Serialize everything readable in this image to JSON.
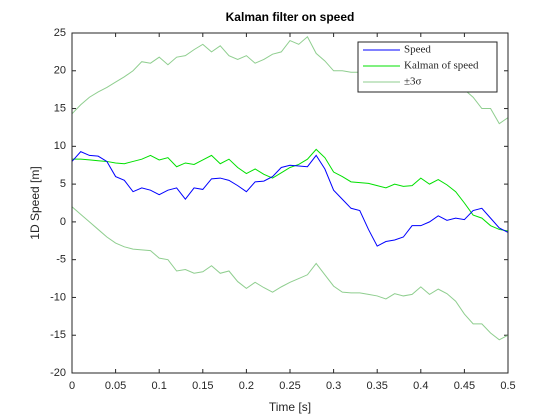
{
  "chart_data": {
    "type": "line",
    "title": "Kalman filter on speed",
    "xlabel": "Time [s]",
    "ylabel": "1D Speed [m]",
    "x": [
      0,
      0.01,
      0.02,
      0.03,
      0.04,
      0.05,
      0.06,
      0.07,
      0.08,
      0.09,
      0.1,
      0.11,
      0.12,
      0.13,
      0.14,
      0.15,
      0.16,
      0.17,
      0.18,
      0.19,
      0.2,
      0.21,
      0.22,
      0.23,
      0.24,
      0.25,
      0.26,
      0.27,
      0.28,
      0.29,
      0.3,
      0.31,
      0.32,
      0.33,
      0.34,
      0.35,
      0.36,
      0.37,
      0.38,
      0.39,
      0.4,
      0.41,
      0.42,
      0.43,
      0.44,
      0.45,
      0.46,
      0.47,
      0.48,
      0.49,
      0.5
    ],
    "series": [
      {
        "name": "Speed",
        "color": "#0000ff",
        "values": [
          8,
          9.3,
          8.8,
          8.7,
          8,
          6,
          5.5,
          4,
          4.5,
          4.2,
          3.6,
          4.2,
          4.5,
          3,
          4.5,
          4.3,
          5.7,
          5.8,
          5.5,
          4.8,
          4,
          5.3,
          5.4,
          6,
          7.2,
          7.5,
          7.4,
          7.3,
          8.8,
          7,
          4.2,
          3,
          1.8,
          1.5,
          -1,
          -3.2,
          -2.6,
          -2.4,
          -2,
          -0.5,
          -0.5,
          0,
          0.8,
          0.2,
          0.5,
          0.3,
          1.5,
          1.8,
          0.5,
          -0.8,
          -1.4
        ]
      },
      {
        "name": "Kalman of speed",
        "color": "#00e000",
        "values": [
          8.3,
          8.3,
          8.2,
          8.1,
          8,
          7.8,
          7.7,
          8,
          8.3,
          8.8,
          8.2,
          8.5,
          7.3,
          7.8,
          7.6,
          8.2,
          8.8,
          7.7,
          8.3,
          7.2,
          6.4,
          7,
          6.3,
          5.8,
          6.5,
          7.2,
          7.6,
          8.3,
          9.6,
          8.5,
          6.6,
          6,
          5.3,
          5.2,
          5.1,
          4.8,
          4.5,
          5,
          4.7,
          4.8,
          5.8,
          5,
          5.6,
          4.9,
          4,
          2.5,
          0.9,
          0.5,
          -0.5,
          -1,
          -1.2
        ]
      },
      {
        "name": "±3σ",
        "color": "#8fce8f",
        "upper": [
          14.3,
          15.5,
          16.5,
          17.2,
          17.8,
          18.5,
          19.2,
          20,
          21.2,
          21,
          21.8,
          20.8,
          21.8,
          22,
          22.8,
          23.5,
          22.5,
          23.3,
          22,
          21.5,
          22,
          21,
          21.5,
          22.2,
          22.5,
          24,
          23.5,
          24.5,
          22.3,
          21.3,
          20,
          20,
          19.8,
          19.8,
          20,
          19.8,
          19.5,
          20,
          19.7,
          19.8,
          20.8,
          20,
          20.6,
          19.9,
          19,
          17.5,
          16.5,
          15,
          15,
          13,
          13.8
        ],
        "lower": [
          2,
          1,
          0,
          -1,
          -2,
          -2.8,
          -3.3,
          -3.6,
          -3.7,
          -3.8,
          -4.8,
          -5,
          -6.5,
          -6.3,
          -6.8,
          -6.6,
          -5.8,
          -6.8,
          -6.5,
          -7.9,
          -8.8,
          -8,
          -8.7,
          -9.3,
          -8.6,
          -8,
          -7.5,
          -7,
          -5.5,
          -7,
          -8.5,
          -9.3,
          -9.4,
          -9.4,
          -9.6,
          -9.8,
          -10.2,
          -9.5,
          -9.8,
          -9.6,
          -8.6,
          -9.6,
          -8.9,
          -9.5,
          -10.5,
          -12.2,
          -13.5,
          -13.5,
          -14.7,
          -15.6,
          -15
        ]
      }
    ],
    "xlim": [
      0,
      0.5
    ],
    "xticks": [
      0,
      0.05,
      0.1,
      0.15,
      0.2,
      0.25,
      0.3,
      0.35,
      0.4,
      0.45,
      0.5
    ],
    "ylim": [
      -20,
      25
    ],
    "yticks": [
      -20,
      -15,
      -10,
      -5,
      0,
      5,
      10,
      15,
      20,
      25
    ],
    "grid": false,
    "legend": "northeast"
  }
}
